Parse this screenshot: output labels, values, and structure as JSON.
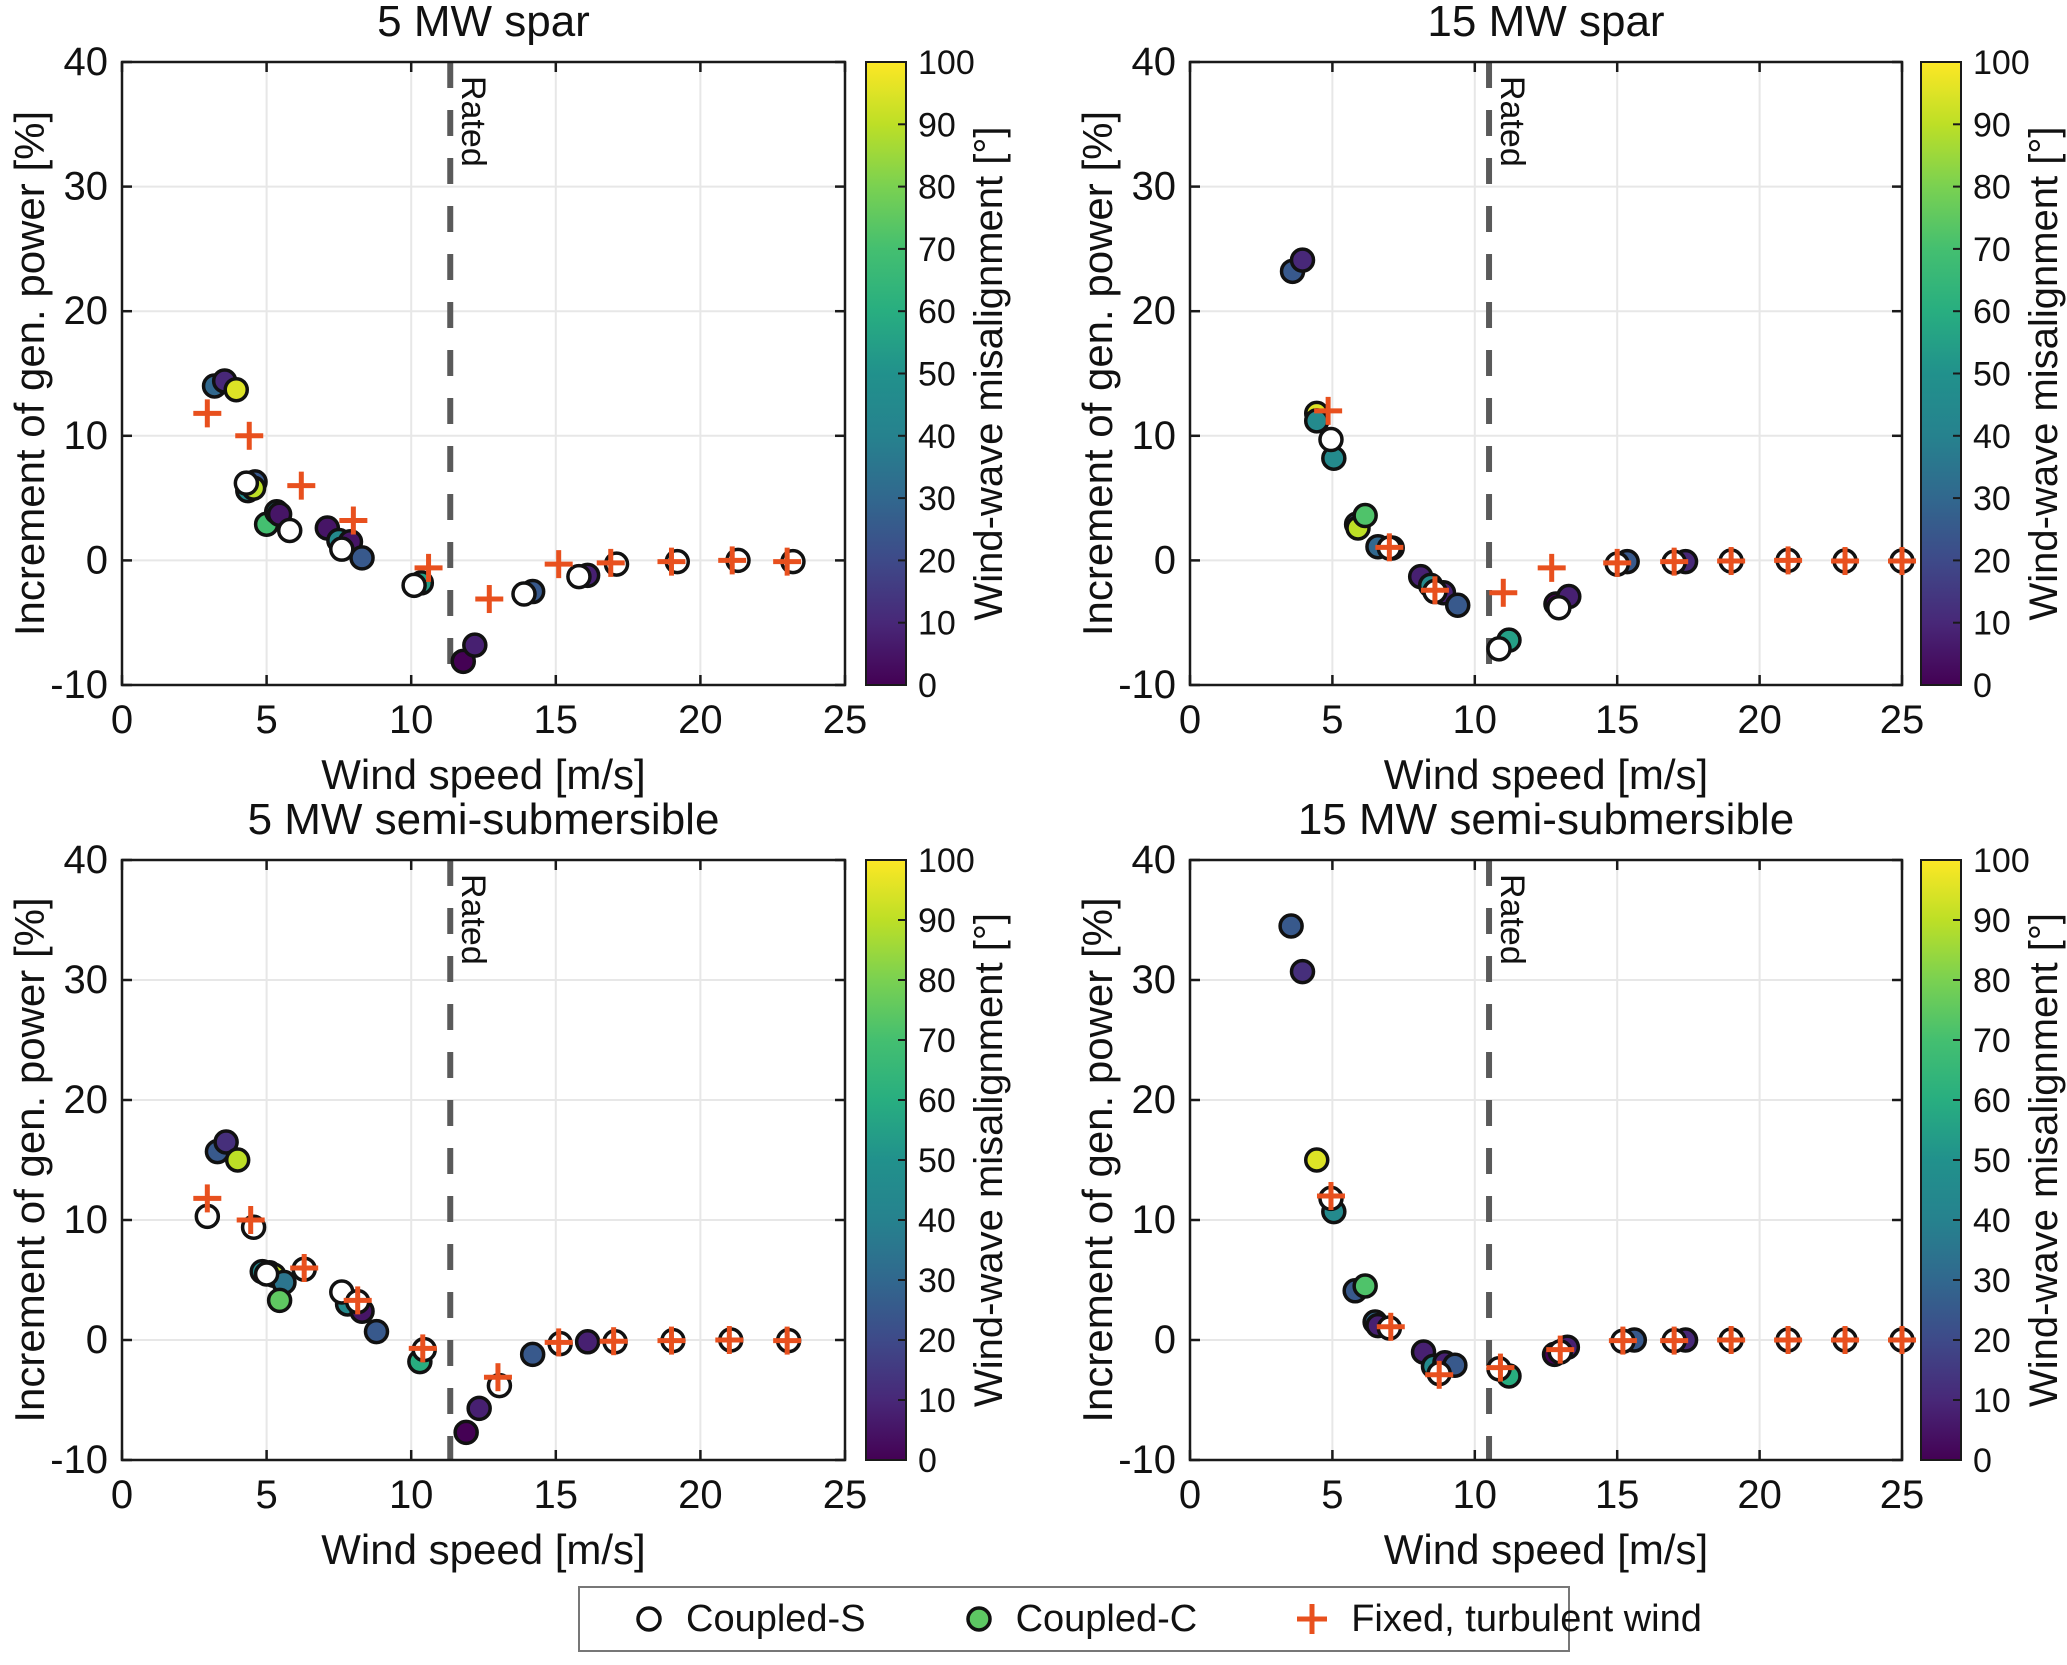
{
  "figure": {
    "x_label": "Wind speed [m/s]",
    "y_label": "Increment of gen. power [%]",
    "x_ticks": [
      0,
      5,
      10,
      15,
      20,
      25
    ],
    "y_ticks": [
      -10,
      0,
      10,
      20,
      30,
      40
    ],
    "x_lim": [
      0,
      25
    ],
    "y_lim": [
      -10,
      40
    ],
    "rated_label": "Rated",
    "colorbar": {
      "label": "Wind-wave misalignment [°]",
      "ticks": [
        0,
        10,
        20,
        30,
        40,
        50,
        60,
        70,
        80,
        90,
        100
      ],
      "min": 0,
      "max": 100
    },
    "colors": {
      "fixed_marker": "#e8501e",
      "rated_line": "#5a5a5a",
      "grid": "#e7e7e7",
      "axis": "#1a1a1a",
      "marker_edge": "#111111",
      "legend_c_fill": "#5dc863"
    },
    "viridis_stops": [
      "#440154",
      "#482878",
      "#3e4a89",
      "#31688e",
      "#26828e",
      "#21918c",
      "#28ae80",
      "#44bf70",
      "#7ad151",
      "#bddf26",
      "#fde725"
    ]
  },
  "legend": {
    "items": [
      {
        "label": "Coupled-S",
        "marker": "open-circle"
      },
      {
        "label": "Coupled-C",
        "marker": "filled-circle"
      },
      {
        "label": "Fixed, turbulent wind",
        "marker": "plus"
      }
    ]
  },
  "chart_data": [
    {
      "type": "scatter",
      "title": "5 MW spar",
      "xlabel": "Wind speed [m/s]",
      "ylabel": "Increment of gen. power [%]",
      "xlim": [
        0,
        25
      ],
      "ylim": [
        -10,
        40
      ],
      "rated_wind_speed": 11.35,
      "series": {
        "coupled_c": {
          "label": "Coupled-C",
          "points": [
            [
              3.2,
              14.0,
              30
            ],
            [
              3.55,
              14.4,
              10
            ],
            [
              3.95,
              13.7,
              95
            ],
            [
              4.35,
              5.6,
              45
            ],
            [
              4.6,
              6.3,
              25
            ],
            [
              4.55,
              5.8,
              90
            ],
            [
              5.0,
              2.9,
              70
            ],
            [
              5.35,
              3.9,
              45
            ],
            [
              5.45,
              3.7,
              5
            ],
            [
              7.1,
              2.6,
              5
            ],
            [
              7.5,
              1.6,
              45
            ],
            [
              7.9,
              1.5,
              5
            ],
            [
              8.3,
              0.2,
              25
            ],
            [
              10.35,
              -1.8,
              55
            ],
            [
              11.8,
              -8.1,
              0
            ],
            [
              12.2,
              -6.8,
              8
            ],
            [
              14.2,
              -2.5,
              25
            ],
            [
              16.1,
              -1.2,
              8
            ]
          ]
        },
        "coupled_s": {
          "label": "Coupled-S",
          "points": [
            [
              4.3,
              6.2
            ],
            [
              5.8,
              2.4
            ],
            [
              7.6,
              0.9
            ],
            [
              10.1,
              -2.0
            ],
            [
              13.9,
              -2.7
            ],
            [
              15.8,
              -1.3
            ],
            [
              17.1,
              -0.3
            ],
            [
              19.2,
              -0.1
            ],
            [
              21.3,
              0.0
            ],
            [
              23.2,
              -0.1
            ]
          ]
        },
        "fixed": {
          "label": "Fixed, turbulent wind",
          "points": [
            [
              2.95,
              11.8
            ],
            [
              4.4,
              10.0
            ],
            [
              6.2,
              6.0
            ],
            [
              8.0,
              3.2
            ],
            [
              10.6,
              -0.6
            ],
            [
              12.7,
              -3.1
            ],
            [
              15.1,
              -0.3
            ],
            [
              16.9,
              -0.2
            ],
            [
              19.0,
              -0.1
            ],
            [
              21.1,
              0.0
            ],
            [
              23.0,
              -0.1
            ]
          ]
        }
      }
    },
    {
      "type": "scatter",
      "title": "15 MW spar",
      "xlabel": "Wind speed [m/s]",
      "ylabel": "Increment of gen. power [%]",
      "xlim": [
        0,
        25
      ],
      "ylim": [
        -10,
        40
      ],
      "rated_wind_speed": 10.5,
      "series": {
        "coupled_c": {
          "label": "Coupled-C",
          "points": [
            [
              3.6,
              23.2,
              25
            ],
            [
              3.95,
              24.1,
              10
            ],
            [
              4.45,
              11.8,
              95
            ],
            [
              4.45,
              11.2,
              45
            ],
            [
              5.05,
              8.2,
              45
            ],
            [
              5.85,
              2.9,
              25
            ],
            [
              5.9,
              2.6,
              90
            ],
            [
              6.15,
              3.6,
              72
            ],
            [
              6.6,
              1.1,
              30
            ],
            [
              7.1,
              1.0,
              8
            ],
            [
              8.1,
              -1.3,
              8
            ],
            [
              8.45,
              -2.0,
              45
            ],
            [
              8.9,
              -2.6,
              8
            ],
            [
              9.4,
              -3.6,
              25
            ],
            [
              11.2,
              -6.4,
              55
            ],
            [
              12.85,
              -3.5,
              0
            ],
            [
              13.3,
              -2.9,
              8
            ],
            [
              15.35,
              -0.1,
              25
            ],
            [
              17.4,
              -0.1,
              10
            ]
          ]
        },
        "coupled_s": {
          "label": "Coupled-S",
          "points": [
            [
              4.95,
              9.7
            ],
            [
              7.0,
              1.0
            ],
            [
              8.6,
              -2.5
            ],
            [
              10.85,
              -7.1
            ],
            [
              12.95,
              -3.8
            ],
            [
              15.0,
              -0.3
            ],
            [
              17.0,
              -0.15
            ],
            [
              19.0,
              -0.05
            ],
            [
              21.0,
              0.0
            ],
            [
              23.0,
              -0.05
            ],
            [
              25.0,
              -0.05
            ]
          ]
        },
        "fixed": {
          "label": "Fixed, turbulent wind",
          "points": [
            [
              4.85,
              12.0
            ],
            [
              7.0,
              1.05
            ],
            [
              8.6,
              -2.4
            ],
            [
              11.0,
              -2.6
            ],
            [
              12.7,
              -0.6
            ],
            [
              15.0,
              -0.2
            ],
            [
              17.0,
              -0.1
            ],
            [
              19.0,
              -0.05
            ],
            [
              21.0,
              0.0
            ],
            [
              23.0,
              -0.05
            ],
            [
              25.0,
              -0.05
            ]
          ]
        }
      }
    },
    {
      "type": "scatter",
      "title": "5 MW semi-submersible",
      "xlabel": "Wind speed [m/s]",
      "ylabel": "Increment of gen. power [%]",
      "xlim": [
        0,
        25
      ],
      "ylim": [
        -10,
        40
      ],
      "rated_wind_speed": 11.35,
      "series": {
        "coupled_c": {
          "label": "Coupled-C",
          "points": [
            [
              3.3,
              15.7,
              25
            ],
            [
              3.6,
              16.5,
              12
            ],
            [
              4.0,
              15.0,
              90
            ],
            [
              4.85,
              5.7,
              45
            ],
            [
              5.1,
              5.6,
              30
            ],
            [
              5.25,
              5.4,
              90
            ],
            [
              5.6,
              4.8,
              35
            ],
            [
              5.45,
              3.3,
              75
            ],
            [
              7.8,
              3.0,
              45
            ],
            [
              8.3,
              2.4,
              5
            ],
            [
              8.8,
              0.7,
              25
            ],
            [
              10.3,
              -1.8,
              60
            ],
            [
              11.9,
              -7.7,
              0
            ],
            [
              12.35,
              -5.7,
              8
            ],
            [
              14.2,
              -1.2,
              25
            ],
            [
              16.1,
              -0.15,
              8
            ]
          ]
        },
        "coupled_s": {
          "label": "Coupled-S",
          "points": [
            [
              2.95,
              10.3
            ],
            [
              4.55,
              9.4
            ],
            [
              5.0,
              5.5
            ],
            [
              6.3,
              5.9
            ],
            [
              7.6,
              4.0
            ],
            [
              8.15,
              3.2
            ],
            [
              10.45,
              -0.8
            ],
            [
              13.05,
              -3.8
            ],
            [
              15.15,
              -0.3
            ],
            [
              17.05,
              -0.15
            ],
            [
              19.05,
              -0.05
            ],
            [
              21.05,
              0.0
            ],
            [
              23.05,
              -0.05
            ]
          ]
        },
        "fixed": {
          "label": "Fixed, turbulent wind",
          "points": [
            [
              2.95,
              11.8
            ],
            [
              4.45,
              10.0
            ],
            [
              6.3,
              6.0
            ],
            [
              8.15,
              3.3
            ],
            [
              10.4,
              -0.7
            ],
            [
              13.0,
              -3.1
            ],
            [
              15.1,
              -0.2
            ],
            [
              17.0,
              -0.1
            ],
            [
              19.0,
              -0.05
            ],
            [
              21.0,
              0.0
            ],
            [
              23.0,
              -0.05
            ]
          ]
        }
      }
    },
    {
      "type": "scatter",
      "title": "15 MW semi-submersible",
      "xlabel": "Wind speed [m/s]",
      "ylabel": "Increment of gen. power [%]",
      "xlim": [
        0,
        25
      ],
      "ylim": [
        -10,
        40
      ],
      "rated_wind_speed": 10.5,
      "series": {
        "coupled_c": {
          "label": "Coupled-C",
          "points": [
            [
              3.55,
              34.5,
              25
            ],
            [
              3.95,
              30.7,
              12
            ],
            [
              4.45,
              15.0,
              95
            ],
            [
              5.05,
              10.7,
              45
            ],
            [
              5.8,
              4.1,
              25
            ],
            [
              6.15,
              4.5,
              72
            ],
            [
              6.5,
              1.5,
              30
            ],
            [
              6.6,
              1.2,
              8
            ],
            [
              8.2,
              -1.0,
              8
            ],
            [
              8.55,
              -2.2,
              45
            ],
            [
              8.95,
              -1.9,
              8
            ],
            [
              9.3,
              -2.1,
              25
            ],
            [
              11.2,
              -3.0,
              60
            ],
            [
              12.8,
              -1.2,
              0
            ],
            [
              13.25,
              -0.6,
              8
            ],
            [
              15.6,
              0.0,
              25
            ],
            [
              17.4,
              0.0,
              10
            ]
          ]
        },
        "coupled_s": {
          "label": "Coupled-S",
          "points": [
            [
              4.95,
              11.8
            ],
            [
              7.0,
              1.0
            ],
            [
              8.75,
              -2.8
            ],
            [
              10.85,
              -2.4
            ],
            [
              13.0,
              -1.0
            ],
            [
              15.2,
              -0.1
            ],
            [
              17.0,
              -0.05
            ],
            [
              19.0,
              0.0
            ],
            [
              21.0,
              0.0
            ],
            [
              23.0,
              0.0
            ],
            [
              25.0,
              0.0
            ]
          ]
        },
        "fixed": {
          "label": "Fixed, turbulent wind",
          "points": [
            [
              4.95,
              12.0
            ],
            [
              7.05,
              1.1
            ],
            [
              8.75,
              -2.9
            ],
            [
              10.9,
              -2.3
            ],
            [
              13.0,
              -0.8
            ],
            [
              15.2,
              -0.05
            ],
            [
              17.0,
              -0.05
            ],
            [
              19.0,
              0.0
            ],
            [
              21.0,
              0.0
            ],
            [
              23.0,
              0.0
            ],
            [
              25.0,
              0.0
            ]
          ]
        }
      }
    }
  ]
}
